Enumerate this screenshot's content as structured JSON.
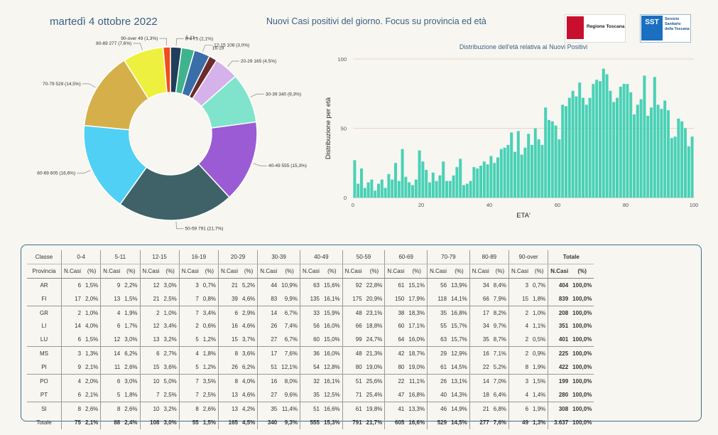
{
  "header": {
    "date": "martedì 4 ottobre 2022",
    "title": "Nuovi Casi positivi del giorno. Focus su provincia ed età",
    "logo_rt_text": "Regione Toscana",
    "logo_sst_badge": "SST",
    "logo_sst_text": "Servizio Sanitario della Toscana"
  },
  "chart_data": [
    {
      "type": "pie",
      "donut": true,
      "slices": [
        {
          "label": "0-4 75 (2,1%)",
          "value": 75,
          "color": "#1f3f5a"
        },
        {
          "label": "5-11",
          "value": 88,
          "color": "#3fb38c"
        },
        {
          "label": "12-15 108 (3,0%)",
          "value": 108,
          "color": "#3a6ea8"
        },
        {
          "label": "16-19",
          "value": 55,
          "color": "#6b2c2c"
        },
        {
          "label": "20-29 165 (4,5%)",
          "value": 165,
          "color": "#d5b2ea"
        },
        {
          "label": "30-39 340 (9,3%)",
          "value": 340,
          "color": "#7fe4cb"
        },
        {
          "label": "40-49 555 (15,3%)",
          "value": 555,
          "color": "#9b5bd4"
        },
        {
          "label": "50-59 791 (21,7%)",
          "value": 791,
          "color": "#3e6268"
        },
        {
          "label": "60-69 605 (16,6%)",
          "value": 605,
          "color": "#4fd0f4"
        },
        {
          "label": "70-79 529 (14,5%)",
          "value": 529,
          "color": "#d5b04a"
        },
        {
          "label": "80-89 277 (7,6%)",
          "value": 277,
          "color": "#eef03f"
        },
        {
          "label": "90-over 49 (1,3%)",
          "value": 49,
          "color": "#f04c1c"
        }
      ]
    },
    {
      "type": "bar",
      "title": "Distribuzione dell'età relativa ai Nuovi Positivi",
      "xlabel": "ETA'",
      "ylabel": "Distribuzione per età",
      "xlim": [
        0,
        100
      ],
      "ylim": [
        0,
        100
      ],
      "xticks": [
        0,
        20,
        40,
        60,
        80,
        100
      ],
      "yticks": [
        0,
        50,
        100
      ],
      "color": "#49d1b6",
      "x": [
        0,
        1,
        2,
        3,
        4,
        5,
        6,
        7,
        8,
        9,
        10,
        11,
        12,
        13,
        14,
        15,
        16,
        17,
        18,
        19,
        20,
        21,
        22,
        23,
        24,
        25,
        26,
        27,
        28,
        29,
        30,
        31,
        32,
        33,
        34,
        35,
        36,
        37,
        38,
        39,
        40,
        41,
        42,
        43,
        44,
        45,
        46,
        47,
        48,
        49,
        50,
        51,
        52,
        53,
        54,
        55,
        56,
        57,
        58,
        59,
        60,
        61,
        62,
        63,
        64,
        65,
        66,
        67,
        68,
        69,
        70,
        71,
        72,
        73,
        74,
        75,
        76,
        77,
        78,
        79,
        80,
        81,
        82,
        83,
        84,
        85,
        86,
        87,
        88,
        89,
        90,
        91,
        92,
        93,
        94,
        95,
        96,
        97,
        98,
        99
      ],
      "values": [
        27,
        10,
        21,
        7,
        11,
        13,
        5,
        10,
        13,
        7,
        17,
        13,
        25,
        12,
        35,
        15,
        11,
        9,
        13,
        34,
        26,
        20,
        11,
        18,
        12,
        16,
        26,
        12,
        12,
        16,
        22,
        28,
        9,
        10,
        12,
        22,
        21,
        23,
        26,
        24,
        30,
        25,
        29,
        35,
        36,
        38,
        47,
        33,
        48,
        31,
        36,
        46,
        38,
        50,
        42,
        38,
        65,
        56,
        55,
        52,
        42,
        67,
        66,
        72,
        77,
        73,
        83,
        72,
        67,
        72,
        82,
        85,
        84,
        93,
        89,
        77,
        69,
        72,
        80,
        82,
        82,
        76,
        60,
        67,
        71,
        88,
        59,
        65,
        87,
        67,
        64,
        70,
        63,
        43,
        44,
        57,
        55,
        50,
        37,
        44
      ]
    }
  ],
  "table": {
    "top_header": [
      "Classe",
      "0-4",
      "5-11",
      "12-15",
      "16-19",
      "20-29",
      "30-39",
      "40-49",
      "50-59",
      "60-69",
      "70-79",
      "80-89",
      "90-over",
      "Totale"
    ],
    "sub_header": {
      "provincia": "Provincia",
      "ncasi": "N.Casi",
      "perc": "(%)"
    },
    "rows": [
      {
        "prov": "AR",
        "cells": [
          [
            "6",
            "1,5%"
          ],
          [
            "9",
            "2,2%"
          ],
          [
            "12",
            "3,0%"
          ],
          [
            "3",
            "0,7%"
          ],
          [
            "21",
            "5,2%"
          ],
          [
            "44",
            "10,9%"
          ],
          [
            "63",
            "15,6%"
          ],
          [
            "92",
            "22,8%"
          ],
          [
            "61",
            "15,1%"
          ],
          [
            "56",
            "13,9%"
          ],
          [
            "34",
            "8,4%"
          ],
          [
            "3",
            "0,7%"
          ]
        ],
        "total": [
          "404",
          "100,0%"
        ]
      },
      {
        "prov": "FI",
        "cells": [
          [
            "17",
            "2,0%"
          ],
          [
            "13",
            "1,5%"
          ],
          [
            "21",
            "2,5%"
          ],
          [
            "7",
            "0,8%"
          ],
          [
            "39",
            "4,6%"
          ],
          [
            "83",
            "9,9%"
          ],
          [
            "135",
            "16,1%"
          ],
          [
            "175",
            "20,9%"
          ],
          [
            "150",
            "17,9%"
          ],
          [
            "118",
            "14,1%"
          ],
          [
            "66",
            "7,9%"
          ],
          [
            "15",
            "1,8%"
          ]
        ],
        "total": [
          "839",
          "100,0%"
        ]
      },
      {
        "prov": "GR",
        "cells": [
          [
            "2",
            "1,0%"
          ],
          [
            "4",
            "1,9%"
          ],
          [
            "2",
            "1,0%"
          ],
          [
            "7",
            "3,4%"
          ],
          [
            "6",
            "2,9%"
          ],
          [
            "14",
            "6,7%"
          ],
          [
            "33",
            "15,9%"
          ],
          [
            "48",
            "23,1%"
          ],
          [
            "38",
            "18,3%"
          ],
          [
            "35",
            "16,8%"
          ],
          [
            "17",
            "8,2%"
          ],
          [
            "2",
            "1,0%"
          ]
        ],
        "total": [
          "208",
          "100,0%"
        ]
      },
      {
        "prov": "LI",
        "cells": [
          [
            "14",
            "4,0%"
          ],
          [
            "6",
            "1,7%"
          ],
          [
            "12",
            "3,4%"
          ],
          [
            "2",
            "0,6%"
          ],
          [
            "16",
            "4,6%"
          ],
          [
            "26",
            "7,4%"
          ],
          [
            "56",
            "16,0%"
          ],
          [
            "66",
            "18,8%"
          ],
          [
            "60",
            "17,1%"
          ],
          [
            "55",
            "15,7%"
          ],
          [
            "34",
            "9,7%"
          ],
          [
            "4",
            "1,1%"
          ]
        ],
        "total": [
          "351",
          "100,0%"
        ]
      },
      {
        "prov": "LU",
        "cells": [
          [
            "6",
            "1,5%"
          ],
          [
            "12",
            "3,0%"
          ],
          [
            "13",
            "3,2%"
          ],
          [
            "5",
            "1,2%"
          ],
          [
            "15",
            "3,7%"
          ],
          [
            "27",
            "6,7%"
          ],
          [
            "60",
            "15,0%"
          ],
          [
            "99",
            "24,7%"
          ],
          [
            "64",
            "16,0%"
          ],
          [
            "63",
            "15,7%"
          ],
          [
            "35",
            "8,7%"
          ],
          [
            "2",
            "0,5%"
          ]
        ],
        "total": [
          "401",
          "100,0%"
        ]
      },
      {
        "prov": "MS",
        "cells": [
          [
            "3",
            "1,3%"
          ],
          [
            "14",
            "6,2%"
          ],
          [
            "6",
            "2,7%"
          ],
          [
            "4",
            "1,8%"
          ],
          [
            "8",
            "3,6%"
          ],
          [
            "17",
            "7,6%"
          ],
          [
            "36",
            "16,0%"
          ],
          [
            "48",
            "21,3%"
          ],
          [
            "42",
            "18,7%"
          ],
          [
            "29",
            "12,9%"
          ],
          [
            "16",
            "7,1%"
          ],
          [
            "2",
            "0,9%"
          ]
        ],
        "total": [
          "225",
          "100,0%"
        ]
      },
      {
        "prov": "PI",
        "cells": [
          [
            "9",
            "2,1%"
          ],
          [
            "11",
            "2,6%"
          ],
          [
            "15",
            "3,6%"
          ],
          [
            "5",
            "1,2%"
          ],
          [
            "26",
            "6,2%"
          ],
          [
            "51",
            "12,1%"
          ],
          [
            "54",
            "12,8%"
          ],
          [
            "80",
            "19,0%"
          ],
          [
            "80",
            "19,0%"
          ],
          [
            "61",
            "14,5%"
          ],
          [
            "22",
            "5,2%"
          ],
          [
            "8",
            "1,9%"
          ]
        ],
        "total": [
          "422",
          "100,0%"
        ]
      },
      {
        "prov": "PO",
        "cells": [
          [
            "4",
            "2,0%"
          ],
          [
            "6",
            "3,0%"
          ],
          [
            "10",
            "5,0%"
          ],
          [
            "7",
            "3,5%"
          ],
          [
            "8",
            "4,0%"
          ],
          [
            "16",
            "8,0%"
          ],
          [
            "32",
            "16,1%"
          ],
          [
            "51",
            "25,6%"
          ],
          [
            "22",
            "11,1%"
          ],
          [
            "26",
            "13,1%"
          ],
          [
            "14",
            "7,0%"
          ],
          [
            "3",
            "1,5%"
          ]
        ],
        "total": [
          "199",
          "100,0%"
        ]
      },
      {
        "prov": "PT",
        "cells": [
          [
            "6",
            "2,1%"
          ],
          [
            "5",
            "1,8%"
          ],
          [
            "7",
            "2,5%"
          ],
          [
            "7",
            "2,5%"
          ],
          [
            "13",
            "4,6%"
          ],
          [
            "27",
            "9,6%"
          ],
          [
            "35",
            "12,5%"
          ],
          [
            "71",
            "25,4%"
          ],
          [
            "47",
            "16,8%"
          ],
          [
            "40",
            "14,3%"
          ],
          [
            "18",
            "6,4%"
          ],
          [
            "4",
            "1,4%"
          ]
        ],
        "total": [
          "280",
          "100,0%"
        ]
      },
      {
        "prov": "SI",
        "cells": [
          [
            "8",
            "2,6%"
          ],
          [
            "8",
            "2,6%"
          ],
          [
            "10",
            "3,2%"
          ],
          [
            "8",
            "2,6%"
          ],
          [
            "13",
            "4,2%"
          ],
          [
            "35",
            "11,4%"
          ],
          [
            "51",
            "16,6%"
          ],
          [
            "61",
            "19,8%"
          ],
          [
            "41",
            "13,3%"
          ],
          [
            "46",
            "14,9%"
          ],
          [
            "21",
            "6,8%"
          ],
          [
            "6",
            "1,9%"
          ]
        ],
        "total": [
          "308",
          "100,0%"
        ]
      },
      {
        "prov": "Totale",
        "cells": [
          [
            "75",
            "2,1%"
          ],
          [
            "88",
            "2,4%"
          ],
          [
            "108",
            "3,0%"
          ],
          [
            "55",
            "1,5%"
          ],
          [
            "165",
            "4,5%"
          ],
          [
            "340",
            "9,3%"
          ],
          [
            "555",
            "15,3%"
          ],
          [
            "791",
            "21,7%"
          ],
          [
            "605",
            "16,6%"
          ],
          [
            "529",
            "14,5%"
          ],
          [
            "277",
            "7,6%"
          ],
          [
            "49",
            "1,3%"
          ]
        ],
        "total": [
          "3.637",
          "100,0%"
        ]
      }
    ]
  }
}
